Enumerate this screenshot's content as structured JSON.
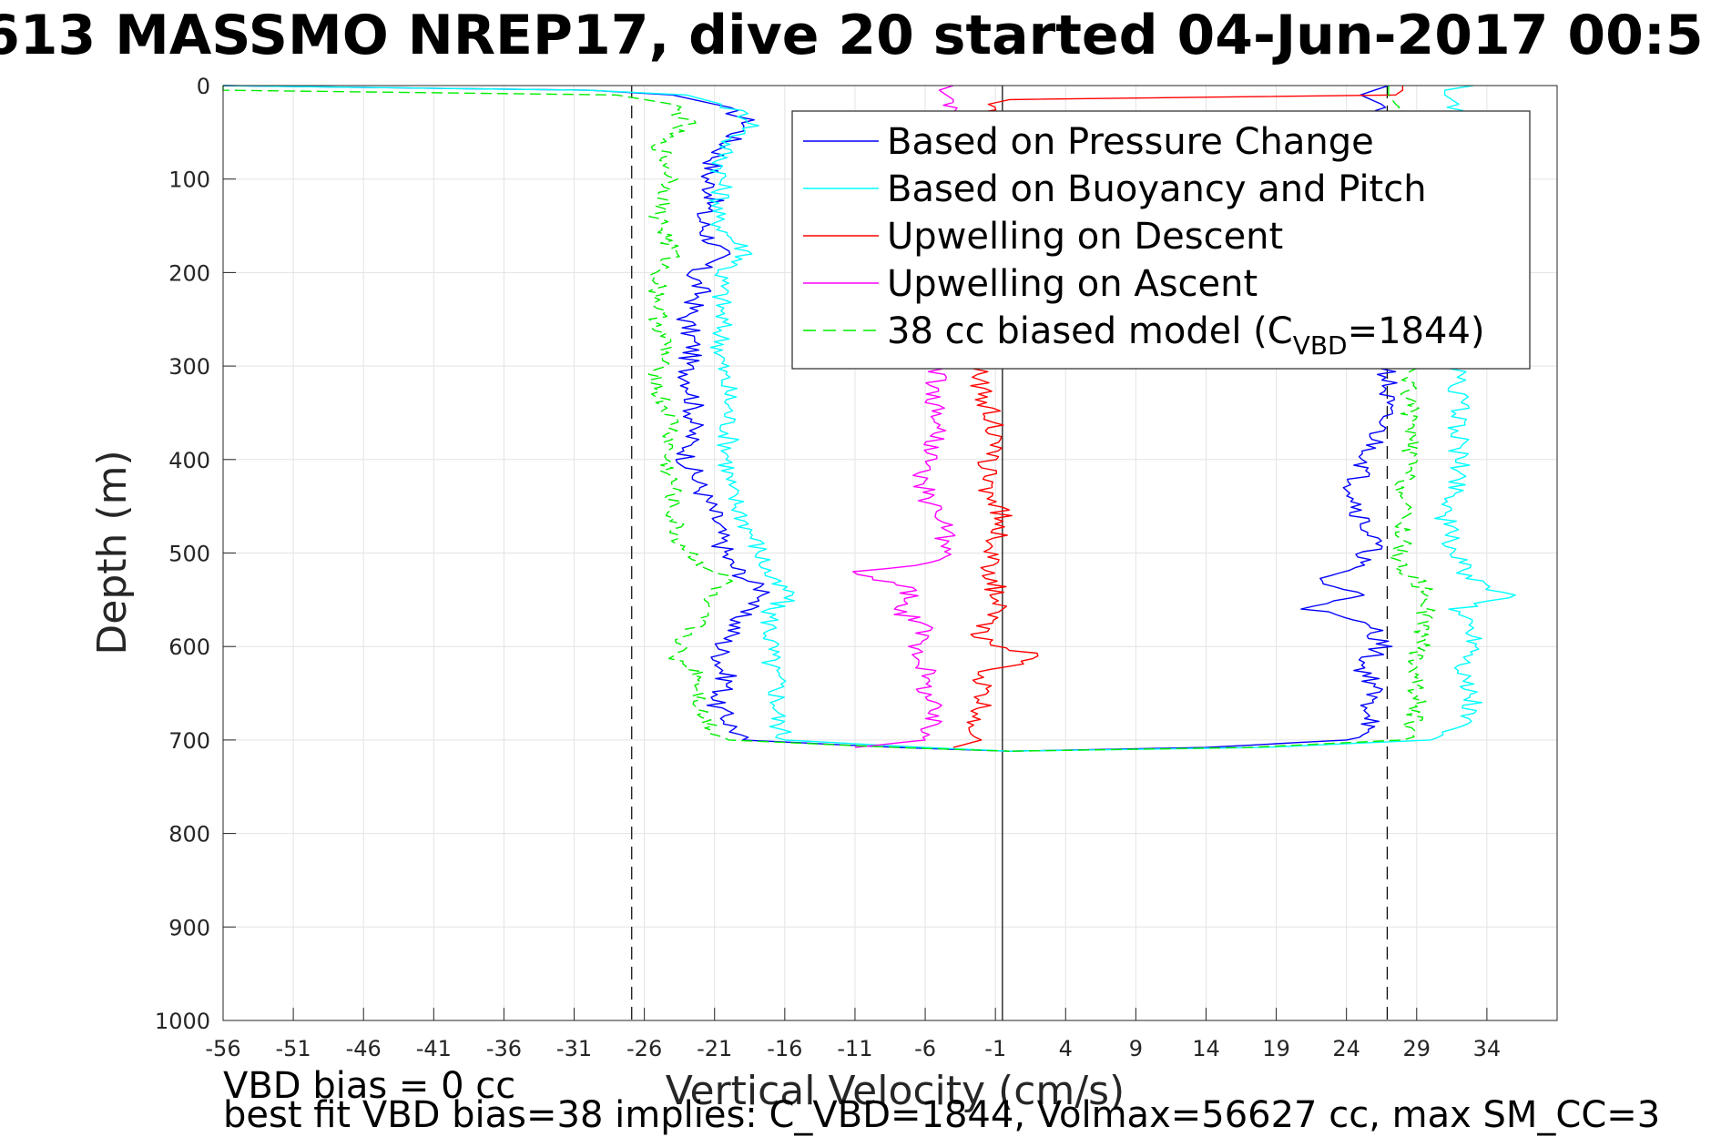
{
  "chart_data": {
    "type": "line",
    "title": "613 MASSMO NREP17, dive 20 started 04-Jun-2017 00:5",
    "xlabel": "Vertical Velocity (cm/s)",
    "ylabel": "Depth (m)",
    "xlim": [
      -56,
      39
    ],
    "ylim": [
      0,
      1000
    ],
    "y_reversed": true,
    "grid": true,
    "xticks": [
      -56,
      -51,
      -46,
      -41,
      -36,
      -31,
      -26,
      -21,
      -16,
      -11,
      -6,
      -1,
      4,
      9,
      14,
      19,
      24,
      29,
      34
    ],
    "yticks": [
      0,
      100,
      200,
      300,
      400,
      500,
      600,
      700,
      800,
      900,
      1000
    ],
    "reference_lines": {
      "solid_vertical_x": -0.5,
      "dashed_vertical_x": [
        -26.9,
        26.9
      ]
    },
    "legend": {
      "placement": "upper-right",
      "entries": [
        {
          "label": "Based on Pressure Change",
          "color": "#0000ff",
          "style": "solid"
        },
        {
          "label": "Based on Buoyancy and Pitch",
          "color": "#00ffff",
          "style": "solid"
        },
        {
          "label": "Upwelling on Descent",
          "color": "#ff0000",
          "style": "solid"
        },
        {
          "label": "Upwelling on Ascent",
          "color": "#ff00ff",
          "style": "solid"
        },
        {
          "label_prefix": "38 cc biased model (C",
          "label_sub": "VBD",
          "label_suffix": "=1844)",
          "color": "#00ee00",
          "style": "dashed"
        }
      ]
    },
    "series": [
      {
        "name": "Based on Pressure Change",
        "color": "#0000ff",
        "depth": [
          0,
          5,
          10,
          20,
          30,
          40,
          60,
          80,
          100,
          120,
          140,
          160,
          180,
          200,
          220,
          250,
          280,
          300,
          330,
          360,
          400,
          430,
          460,
          490,
          510,
          530,
          545,
          560,
          580,
          600,
          620,
          640,
          660,
          680,
          700,
          708,
          712
        ],
        "x_descent": [
          -56,
          -30,
          -24,
          -21,
          -19.5,
          -18.5,
          -20,
          -21,
          -21.5,
          -21,
          -22,
          -21.5,
          -20.5,
          -22.5,
          -22,
          -23,
          -22.5,
          -23,
          -22.5,
          -22.5,
          -23,
          -22,
          -21,
          -20.5,
          -20,
          -18.5,
          -17,
          -19,
          -19.5,
          -20.5,
          -20.5,
          -20,
          -21,
          -20,
          -19,
          -8,
          0
        ],
        "x_ascent": [
          27,
          26,
          25,
          26.5,
          27,
          27,
          27,
          26.8,
          26.5,
          26.7,
          27,
          26.5,
          26.8,
          27,
          26.7,
          26.9,
          26.7,
          27,
          26.8,
          26.5,
          25.5,
          24.5,
          25,
          26,
          25,
          22,
          25,
          21.5,
          26,
          26.5,
          25,
          26,
          25.5,
          26,
          24,
          14,
          0
        ]
      },
      {
        "name": "Based on Buoyancy and Pitch",
        "color": "#00ffff",
        "depth": [
          0,
          5,
          10,
          20,
          30,
          40,
          60,
          80,
          100,
          120,
          140,
          160,
          180,
          200,
          220,
          250,
          280,
          300,
          330,
          360,
          400,
          430,
          460,
          490,
          510,
          530,
          545,
          560,
          580,
          600,
          620,
          640,
          660,
          680,
          700,
          708,
          712
        ],
        "x_descent": [
          -56,
          -30,
          -23,
          -20.5,
          -19,
          -18,
          -20,
          -20.5,
          -20.5,
          -20.5,
          -21,
          -20,
          -18.5,
          -20.5,
          -20.5,
          -20.5,
          -20.5,
          -20.5,
          -20,
          -20,
          -20,
          -20,
          -19,
          -18,
          -17.5,
          -17,
          -15.5,
          -17,
          -17,
          -17,
          -17,
          -16.5,
          -16.5,
          -16.5,
          -16,
          -6,
          0
        ],
        "x_ascent": [
          33,
          31,
          31,
          32,
          31.5,
          31.5,
          32,
          32,
          32,
          32,
          32,
          32,
          32,
          32,
          32,
          32,
          32,
          32,
          32,
          32,
          32,
          32,
          31,
          31.5,
          32,
          33,
          35.5,
          32,
          33,
          33.5,
          32.5,
          32.5,
          33,
          32.5,
          30,
          18,
          0
        ]
      },
      {
        "name": "Upwelling on Descent",
        "color": "#ff0000",
        "depth": [
          0,
          5,
          10,
          15,
          20,
          300,
          330,
          360,
          400,
          430,
          460,
          490,
          510,
          530,
          560,
          590,
          610,
          630,
          660,
          690,
          700,
          708
        ],
        "x": [
          28,
          28,
          27.5,
          0,
          -1.5,
          -2,
          -2,
          -1,
          -1.5,
          -1.5,
          -0.5,
          -1,
          -1.5,
          -1,
          -1,
          -2.5,
          2,
          -2,
          -2,
          -2.5,
          -2,
          -4
        ]
      },
      {
        "name": "Upwelling on Ascent",
        "color": "#ff00ff",
        "depth": [
          0,
          5,
          10,
          15,
          300,
          330,
          360,
          390,
          420,
          450,
          470,
          490,
          510,
          520,
          540,
          560,
          580,
          600,
          620,
          640,
          660,
          680,
          700,
          708
        ],
        "x": [
          -4,
          -5,
          -4.5,
          -4,
          -5,
          -5.5,
          -5,
          -5.5,
          -6.5,
          -5.5,
          -4.5,
          -4.5,
          -5,
          -11,
          -7,
          -8,
          -6,
          -6.5,
          -6,
          -6,
          -5.5,
          -5.5,
          -6,
          -11
        ]
      },
      {
        "name": "38 cc biased model (CVBD=1844)",
        "color": "#00ee00",
        "dashed": true,
        "depth": [
          0,
          5,
          10,
          20,
          40,
          60,
          80,
          100,
          120,
          140,
          160,
          180,
          200,
          220,
          250,
          280,
          300,
          330,
          360,
          400,
          430,
          460,
          490,
          510,
          530,
          550,
          570,
          590,
          610,
          630,
          650,
          670,
          690,
          700,
          708,
          712
        ],
        "x_descent": [
          -56,
          -56,
          -28,
          -24,
          -23,
          -25,
          -24.5,
          -24,
          -24.5,
          -25,
          -24.5,
          -24,
          -25,
          -25,
          -25,
          -24.5,
          -25,
          -25,
          -24,
          -24.5,
          -24,
          -24,
          -23.5,
          -22,
          -20,
          -22,
          -22,
          -23,
          -24,
          -22,
          -22,
          -22,
          -21,
          -20,
          -8,
          0
        ],
        "x_ascent": [
          27,
          27,
          27,
          27.5,
          28,
          28,
          28.5,
          28.5,
          28.5,
          28.5,
          28.5,
          28.5,
          28.5,
          28.5,
          28.5,
          28.5,
          28.5,
          28.5,
          28.5,
          28.5,
          28,
          28,
          28,
          27.5,
          29,
          30,
          29.5,
          29.5,
          29,
          29,
          29,
          29,
          28.5,
          28,
          17,
          0
        ]
      }
    ]
  },
  "notes": {
    "line1": "VBD bias = 0 cc",
    "line2": "best fit VBD bias=38 implies: C_VBD=1844, Volmax=56627 cc, max SM_CC=3"
  }
}
